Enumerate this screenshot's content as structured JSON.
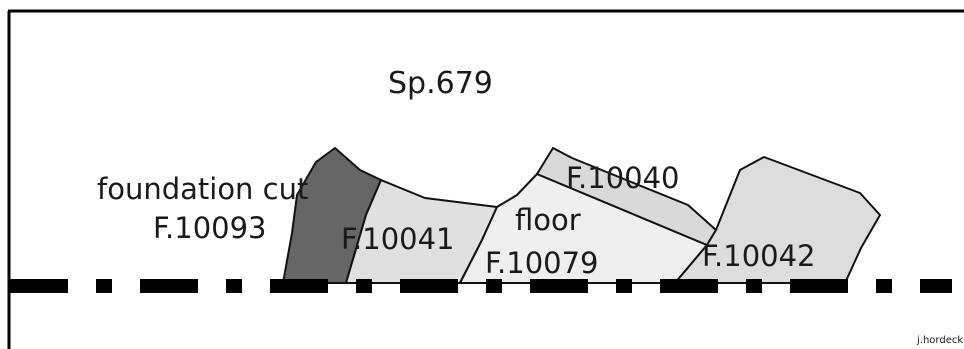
{
  "diagram": {
    "section_label": "Sp.679",
    "features": [
      {
        "id": "f10093",
        "label_lines": [
          "foundation cut",
          "F.10093"
        ],
        "fill": "#666666"
      },
      {
        "id": "f10041",
        "label_lines": [
          "F.10041"
        ],
        "fill": "#e0e0e0"
      },
      {
        "id": "f10040",
        "label_lines": [
          "F.10040"
        ],
        "fill": "#d9d9d9"
      },
      {
        "id": "f10079",
        "label_lines": [
          "floor",
          "F.10079"
        ],
        "fill": "#efefef"
      },
      {
        "id": "f10042",
        "label_lines": [
          "F.10042"
        ],
        "fill": "#dddddd"
      }
    ],
    "credit": "j.hordecki"
  }
}
